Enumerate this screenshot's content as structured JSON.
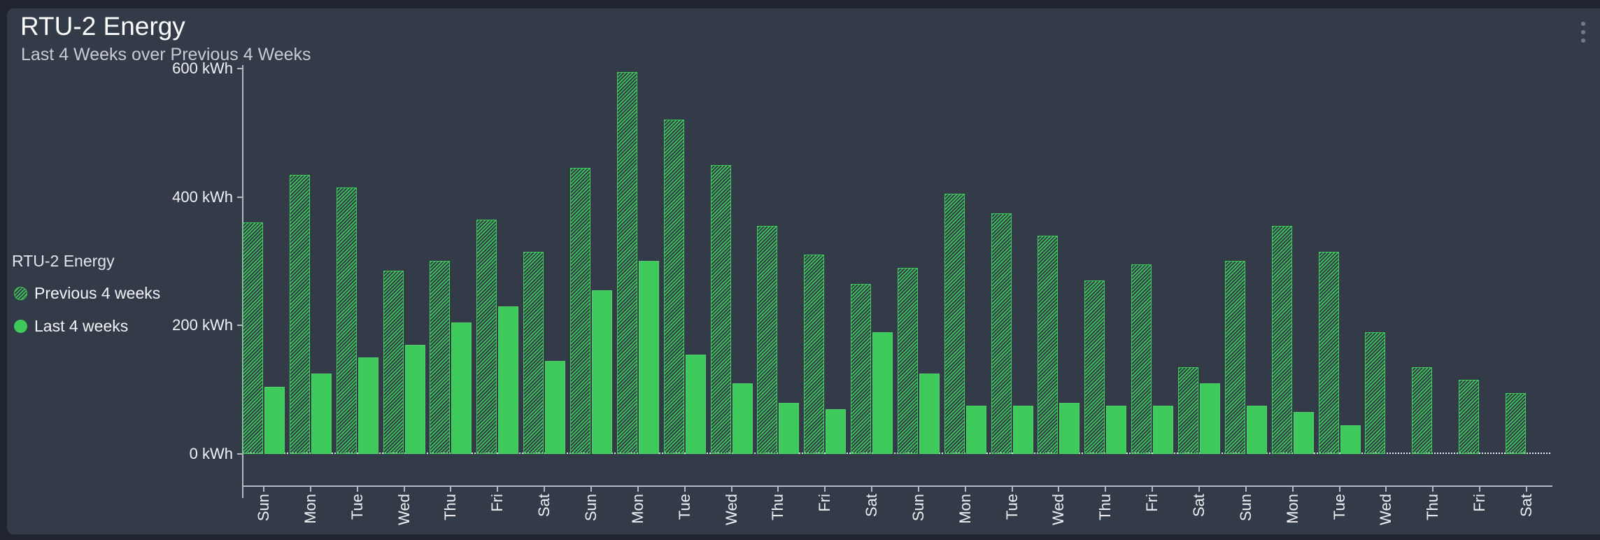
{
  "header": {
    "menu_icon": "kebab-menu"
  },
  "legend": {
    "heading": "RTU-2 Energy",
    "items": [
      {
        "label": "Previous 4 weeks",
        "swatch": "hatched-circle"
      },
      {
        "label": "Last 4 weeks",
        "swatch": "solid-circle"
      }
    ]
  },
  "colors": {
    "card_background": "#333a48",
    "page_background": "#1f242e",
    "bar_green": "#3ec95b",
    "axis": "#b4bac3",
    "title_text": "#fdfdfe",
    "subtitle_text": "#c7ccd4",
    "menu_dots": "#767c86"
  },
  "chart_data": {
    "type": "bar",
    "title": "RTU-2 Energy",
    "subtitle": "Last 4 Weeks over Previous 4 Weeks",
    "unit": "kWh",
    "ylim": [
      0,
      600
    ],
    "ytick_values": [
      0,
      200,
      400,
      600
    ],
    "ytick_labels": [
      "0 kWh",
      "200 kWh",
      "400 kWh",
      "600 kWh"
    ],
    "grid": false,
    "legend_position": "left",
    "zero_line_style": "dotted",
    "categories": [
      "Sun",
      "Mon",
      "Tue",
      "Wed",
      "Thu",
      "Fri",
      "Sat",
      "Sun",
      "Mon",
      "Tue",
      "Wed",
      "Thu",
      "Fri",
      "Sat",
      "Sun",
      "Mon",
      "Tue",
      "Wed",
      "Thu",
      "Fri",
      "Sat",
      "Sun",
      "Mon",
      "Tue",
      "Wed",
      "Thu",
      "Fri",
      "Sat"
    ],
    "series": [
      {
        "name": "Previous 4 weeks",
        "style": "hatched",
        "values": [
          360,
          435,
          415,
          285,
          300,
          365,
          315,
          445,
          595,
          520,
          450,
          355,
          310,
          265,
          290,
          405,
          375,
          340,
          270,
          295,
          135,
          300,
          355,
          315,
          190,
          135,
          115,
          95
        ]
      },
      {
        "name": "Last 4 weeks",
        "style": "solid",
        "values": [
          105,
          125,
          150,
          170,
          205,
          230,
          145,
          255,
          300,
          155,
          110,
          80,
          70,
          190,
          125,
          75,
          75,
          80,
          75,
          75,
          110,
          75,
          65,
          45,
          0,
          0,
          0,
          0
        ]
      }
    ]
  }
}
